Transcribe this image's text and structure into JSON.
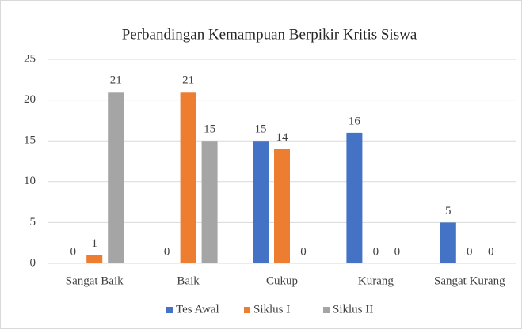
{
  "chart_data": {
    "type": "bar",
    "title": "Perbandingan Kemampuan Berpikir Kritis Siswa",
    "categories": [
      "Sangat Baik",
      "Baik",
      "Cukup",
      "Kurang",
      "Sangat Kurang"
    ],
    "series": [
      {
        "name": "Tes Awal",
        "color": "#4472c4",
        "values": [
          0,
          0,
          15,
          16,
          5
        ]
      },
      {
        "name": "Siklus I",
        "color": "#ed7d31",
        "values": [
          1,
          21,
          14,
          0,
          0
        ]
      },
      {
        "name": "Siklus II",
        "color": "#a5a5a5",
        "values": [
          21,
          15,
          0,
          0,
          0
        ]
      }
    ],
    "ylim": [
      0,
      25
    ],
    "yticks": [
      0,
      5,
      10,
      15,
      20,
      25
    ],
    "grid": true,
    "legend": "bottom"
  }
}
